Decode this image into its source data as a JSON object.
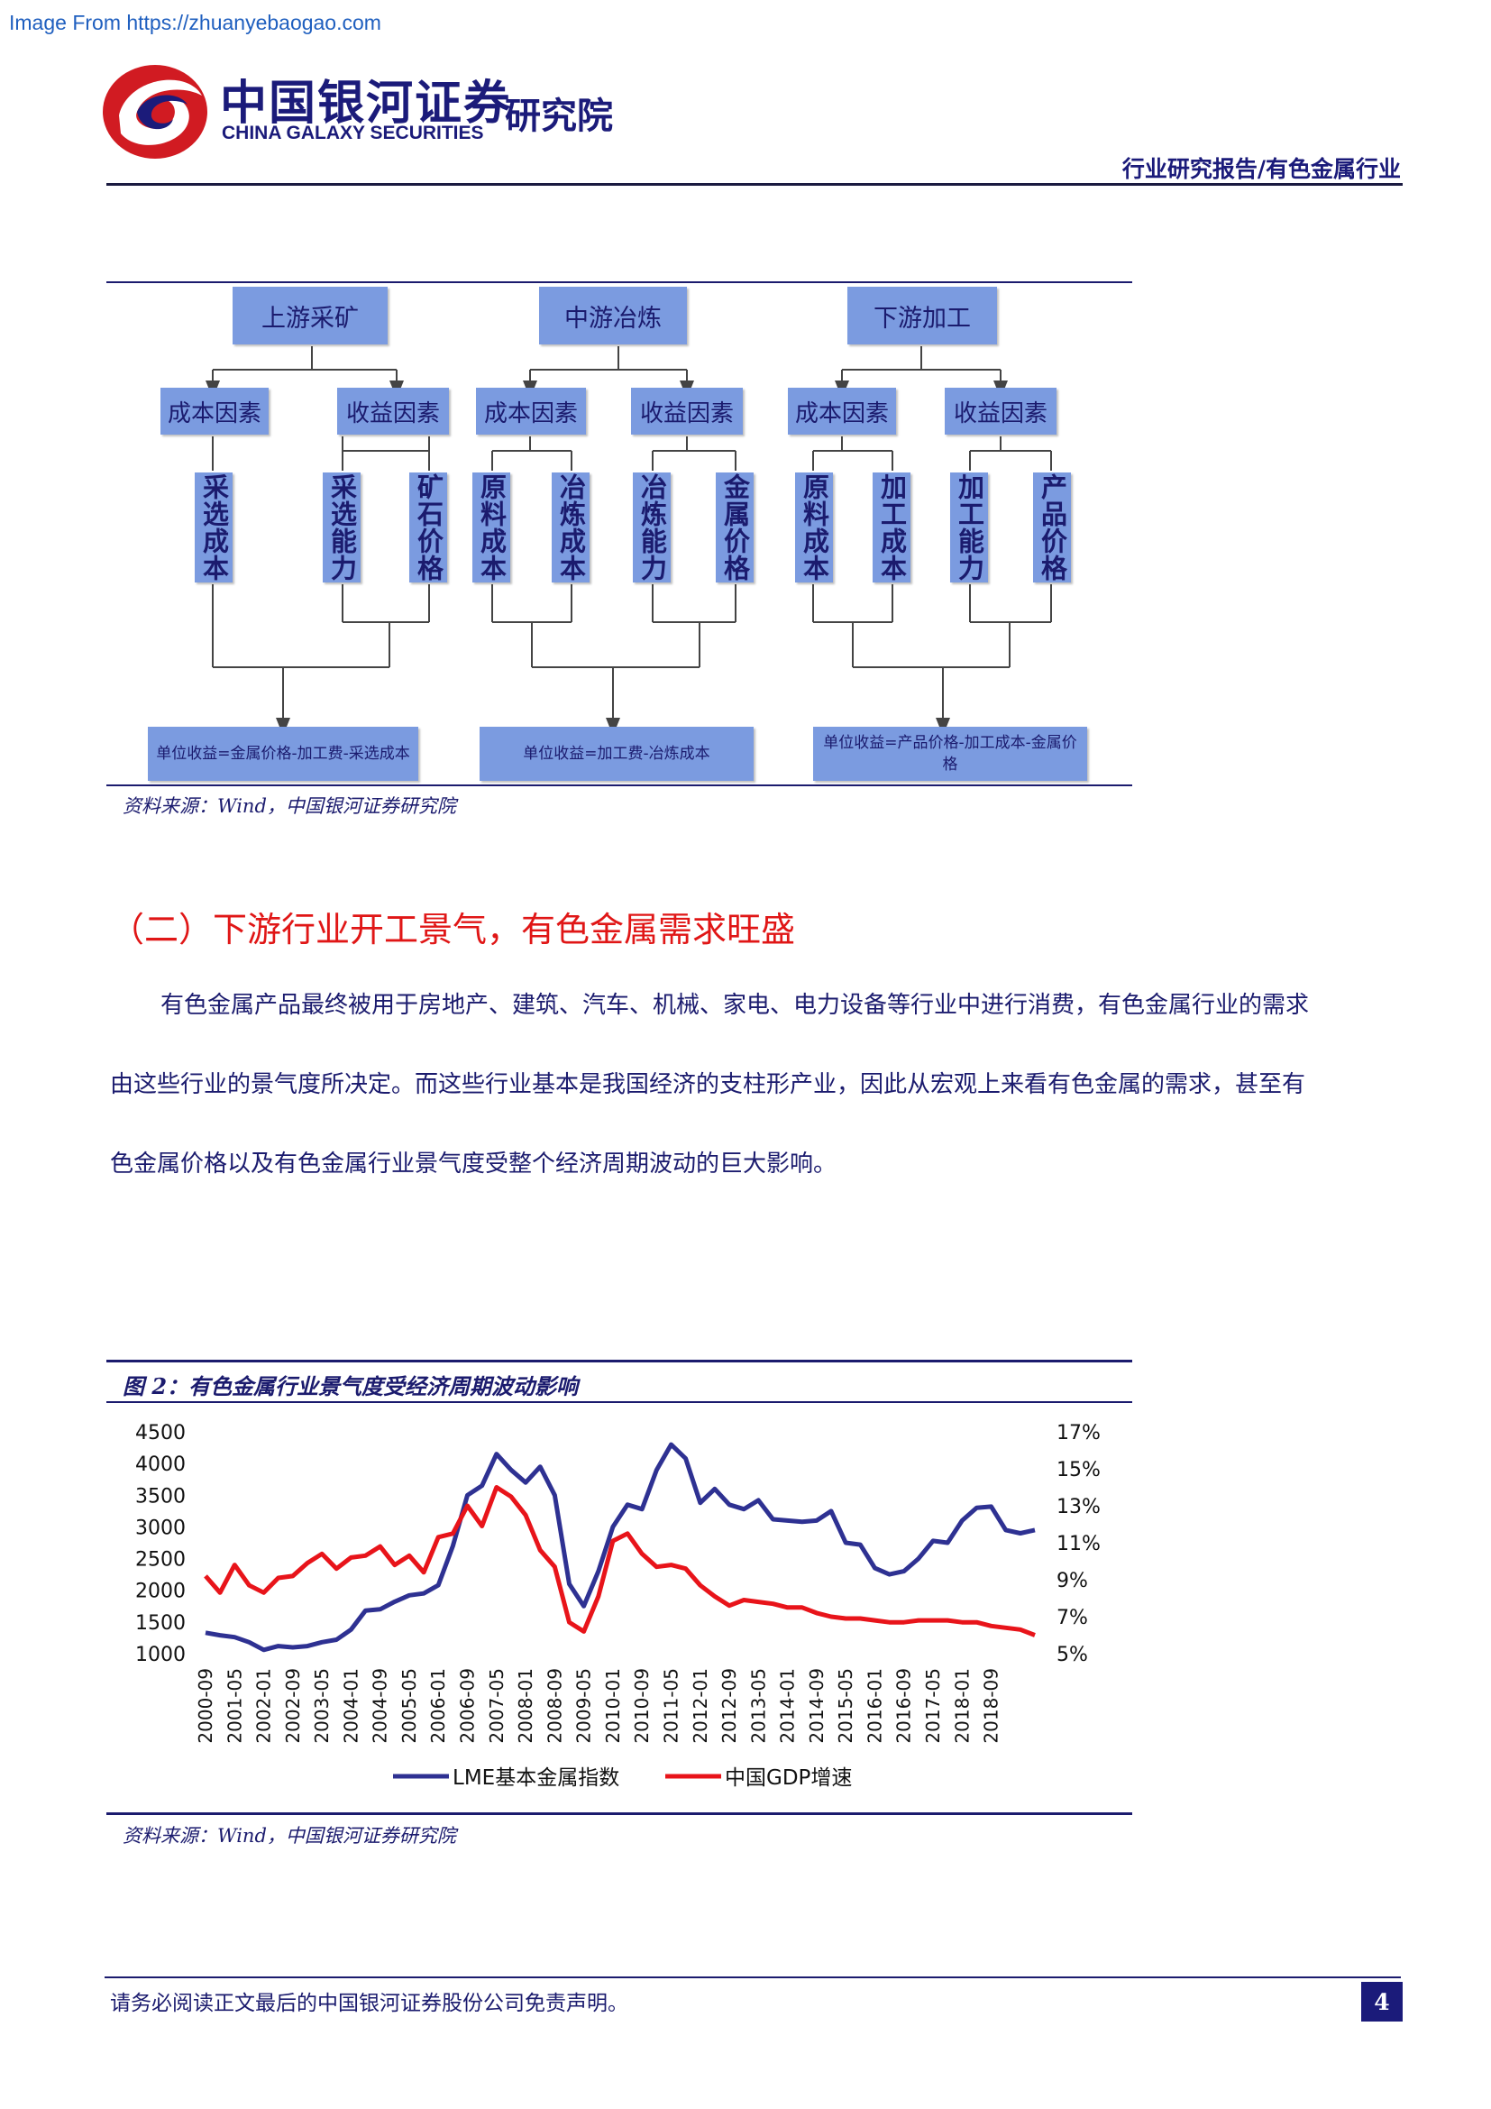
{
  "watermark": "Image From https://zhuanyebaogao.com",
  "header": {
    "logo_cn": "中国银河证券",
    "logo_en": "CHINA GALAXY SECURITIES",
    "logo_inst": "研究院",
    "report_category": "行业研究报告/有色金属行业",
    "logo_icon": "galaxy-swirl-logo",
    "brand_colors": [
      "#d11b22",
      "#1b1b7a"
    ]
  },
  "flowchart": {
    "columns": [
      {
        "header": "上游采矿",
        "cost_label": "成本因素",
        "revenue_label": "收益因素",
        "cost_items": [
          "采选成本"
        ],
        "revenue_items": [
          "采选能力",
          "矿石价格"
        ],
        "result": "单位收益=金属价格-加工费-采选成本"
      },
      {
        "header": "中游冶炼",
        "cost_label": "成本因素",
        "revenue_label": "收益因素",
        "cost_items": [
          "原料成本",
          "冶炼成本"
        ],
        "revenue_items": [
          "冶炼能力",
          "金属价格"
        ],
        "result": "单位收益=加工费-冶炼成本"
      },
      {
        "header": "下游加工",
        "cost_label": "成本因素",
        "revenue_label": "收益因素",
        "cost_items": [
          "原料成本",
          "加工成本"
        ],
        "revenue_items": [
          "加工能力",
          "产品价格"
        ],
        "result": "单位收益=产品价格-加工成本-金属价格"
      }
    ],
    "box_color": "#7b9be0"
  },
  "source1": "资料来源：Wind，中国银河证券研究院",
  "section": {
    "title": "（二）下游行业开工景气，有色金属需求旺盛",
    "lines": [
      "有色金属产品最终被用于房地产、建筑、汽车、机械、家电、电力设备等行业中进行消费，有色金属行业的需求",
      "由这些行业的景气度所决定。而这些行业基本是我国经济的支柱形产业，因此从宏观上来看有色金属的需求，甚至有",
      "色金属价格以及有色金属行业景气度受整个经济周期波动的巨大影响。"
    ]
  },
  "figure2": {
    "title": "图 2：有色金属行业景气度受经济周期波动影响"
  },
  "chart_data": {
    "type": "line",
    "title": "图 2：有色金属行业景气度受经济周期波动影响",
    "x_tick_labels": [
      "2000-09",
      "2001-05",
      "2002-01",
      "2002-09",
      "2003-05",
      "2004-01",
      "2004-09",
      "2005-05",
      "2006-01",
      "2006-09",
      "2007-05",
      "2008-01",
      "2008-09",
      "2009-05",
      "2010-01",
      "2010-09",
      "2011-05",
      "2012-01",
      "2012-09",
      "2013-05",
      "2014-01",
      "2014-09",
      "2015-05",
      "2016-01",
      "2016-09",
      "2017-05",
      "2018-01",
      "2018-09"
    ],
    "x_range": [
      "2000-09",
      "2019-09"
    ],
    "y_left": {
      "ticks": [
        "4500",
        "4000",
        "3500",
        "3000",
        "2500",
        "2000",
        "1500",
        "1000"
      ],
      "range": [
        1000,
        4500
      ]
    },
    "y_right": {
      "ticks": [
        "17%",
        "15%",
        "13%",
        "11%",
        "9%",
        "7%",
        "5%"
      ],
      "range": [
        5,
        17
      ]
    },
    "legend_position": "bottom-center",
    "grid": false,
    "series": [
      {
        "name": "LME基本金属指数",
        "axis": "left",
        "color": "#2e3192",
        "x": [
          "2000-09",
          "2001-01",
          "2001-05",
          "2001-09",
          "2002-01",
          "2002-05",
          "2002-09",
          "2003-01",
          "2003-05",
          "2003-09",
          "2004-01",
          "2004-05",
          "2004-09",
          "2005-01",
          "2005-05",
          "2005-09",
          "2006-01",
          "2006-05",
          "2006-09",
          "2007-01",
          "2007-05",
          "2007-09",
          "2008-01",
          "2008-05",
          "2008-09",
          "2009-01",
          "2009-05",
          "2009-09",
          "2010-01",
          "2010-05",
          "2010-09",
          "2011-01",
          "2011-05",
          "2011-09",
          "2012-01",
          "2012-05",
          "2012-09",
          "2013-01",
          "2013-05",
          "2013-09",
          "2014-01",
          "2014-05",
          "2014-09",
          "2015-01",
          "2015-05",
          "2015-09",
          "2016-01",
          "2016-05",
          "2016-09",
          "2017-01",
          "2017-05",
          "2017-09",
          "2018-01",
          "2018-05",
          "2018-09",
          "2019-01",
          "2019-05",
          "2019-09"
        ],
        "values": [
          1330,
          1290,
          1260,
          1180,
          1060,
          1120,
          1100,
          1120,
          1180,
          1220,
          1380,
          1680,
          1700,
          1820,
          1920,
          1950,
          2080,
          2700,
          3500,
          3650,
          4150,
          3900,
          3700,
          3950,
          3500,
          2100,
          1750,
          2300,
          3000,
          3350,
          3280,
          3900,
          4300,
          4080,
          3380,
          3600,
          3350,
          3280,
          3420,
          3120,
          3100,
          3080,
          3100,
          3250,
          2750,
          2720,
          2350,
          2250,
          2300,
          2500,
          2780,
          2750,
          3100,
          3300,
          3320,
          2950,
          2900,
          2950
        ]
      },
      {
        "name": "中国GDP增速",
        "axis": "right",
        "color": "#e8141a",
        "x": [
          "2000-09",
          "2001-01",
          "2001-05",
          "2001-09",
          "2002-01",
          "2002-05",
          "2002-09",
          "2003-01",
          "2003-05",
          "2003-09",
          "2004-01",
          "2004-05",
          "2004-09",
          "2005-01",
          "2005-05",
          "2005-09",
          "2006-01",
          "2006-05",
          "2006-09",
          "2007-01",
          "2007-05",
          "2007-09",
          "2008-01",
          "2008-05",
          "2008-09",
          "2009-01",
          "2009-05",
          "2009-09",
          "2010-01",
          "2010-05",
          "2010-09",
          "2011-01",
          "2011-05",
          "2011-09",
          "2012-01",
          "2012-05",
          "2012-09",
          "2013-01",
          "2013-05",
          "2013-09",
          "2014-01",
          "2014-05",
          "2014-09",
          "2015-01",
          "2015-05",
          "2015-09",
          "2016-01",
          "2016-05",
          "2016-09",
          "2017-01",
          "2017-05",
          "2017-09",
          "2018-01",
          "2018-05",
          "2018-09",
          "2019-01",
          "2019-05",
          "2019-09"
        ],
        "values": [
          9.2,
          8.3,
          9.8,
          8.7,
          8.3,
          9.1,
          9.2,
          9.9,
          10.4,
          9.6,
          10.2,
          10.3,
          10.8,
          9.8,
          10.3,
          9.4,
          11.3,
          11.5,
          13.0,
          11.9,
          14.0,
          13.5,
          12.5,
          10.6,
          9.7,
          6.7,
          6.2,
          8.1,
          11.1,
          11.5,
          10.4,
          9.7,
          9.8,
          9.6,
          8.7,
          8.1,
          7.6,
          7.9,
          7.8,
          7.7,
          7.5,
          7.5,
          7.2,
          7.0,
          6.9,
          6.9,
          6.8,
          6.7,
          6.7,
          6.8,
          6.8,
          6.8,
          6.7,
          6.7,
          6.5,
          6.4,
          6.3,
          6.0
        ]
      }
    ]
  },
  "source2": "资料来源：Wind，中国银河证券研究院",
  "footer": {
    "disclaimer": "请务必阅读正文最后的中国银河证券股份公司免责声明。",
    "page_number": "4"
  }
}
